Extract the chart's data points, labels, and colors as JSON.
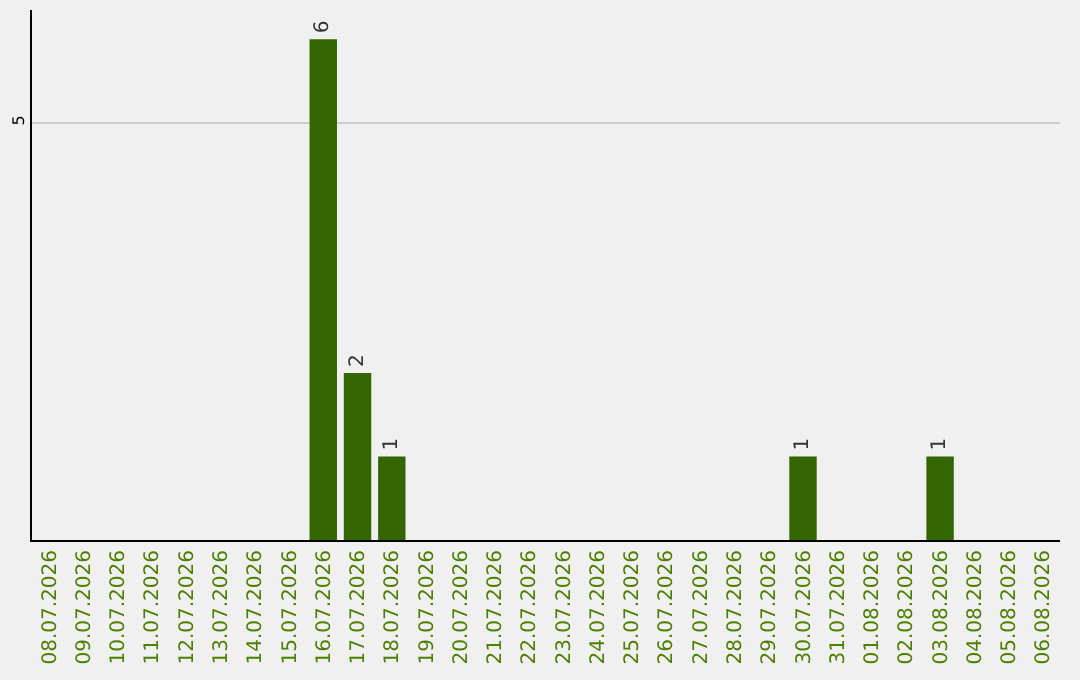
{
  "chart_data": {
    "type": "bar",
    "categories": [
      "08.07.2026",
      "09.07.2026",
      "10.07.2026",
      "11.07.2026",
      "12.07.2026",
      "13.07.2026",
      "14.07.2026",
      "15.07.2026",
      "16.07.2026",
      "17.07.2026",
      "18.07.2026",
      "19.07.2026",
      "20.07.2026",
      "21.07.2026",
      "22.07.2026",
      "23.07.2026",
      "24.07.2026",
      "25.07.2026",
      "26.07.2026",
      "27.07.2026",
      "28.07.2026",
      "29.07.2026",
      "30.07.2026",
      "31.07.2026",
      "01.08.2026",
      "02.08.2026",
      "03.08.2026",
      "04.08.2026",
      "05.08.2026",
      "06.08.2026"
    ],
    "values": [
      0,
      0,
      0,
      0,
      0,
      0,
      0,
      0,
      6,
      2,
      1,
      0,
      0,
      0,
      0,
      0,
      0,
      0,
      0,
      0,
      0,
      0,
      1,
      0,
      0,
      0,
      1,
      0,
      0,
      0
    ],
    "value_labels": [
      null,
      null,
      null,
      null,
      null,
      null,
      null,
      null,
      "6",
      "2",
      "1",
      null,
      null,
      null,
      null,
      null,
      null,
      null,
      null,
      null,
      null,
      null,
      "1",
      null,
      null,
      null,
      "1",
      null,
      null,
      null
    ],
    "color": "#336600",
    "ylim": [
      0,
      6.35
    ],
    "yticks": [
      5
    ],
    "grid": "y",
    "legend": false
  }
}
